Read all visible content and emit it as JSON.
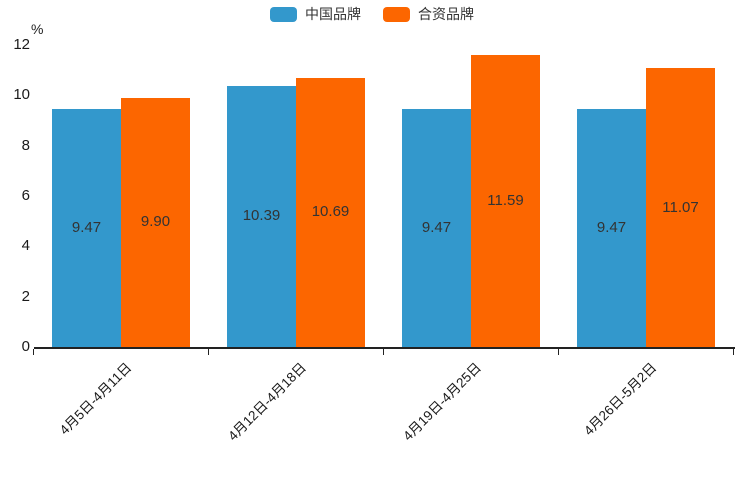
{
  "chart_data": {
    "type": "bar",
    "title": "",
    "categories": [
      "4月5日-4月11日",
      "4月12日-4月18日",
      "4月19日-4月25日",
      "4月26日-5月2日"
    ],
    "series": [
      {
        "name": "中国品牌",
        "color": "#3398CC",
        "values": [
          9.47,
          10.39,
          9.47,
          9.47
        ]
      },
      {
        "name": "合资品牌",
        "color": "#FC6600",
        "values": [
          9.9,
          10.69,
          11.59,
          11.07
        ]
      }
    ],
    "xlabel": "",
    "ylabel": "%",
    "ylim": [
      0,
      12
    ],
    "yticks": [
      0,
      2,
      4,
      6,
      8,
      10,
      12
    ],
    "grid": false,
    "legend_position": "top-center",
    "value_labels": "inside-center",
    "value_label_decimals": 2,
    "colors": {
      "axis": "#222222",
      "text": "#1a1a1a",
      "value_label_text": "#333333",
      "background": "#ffffff"
    }
  }
}
